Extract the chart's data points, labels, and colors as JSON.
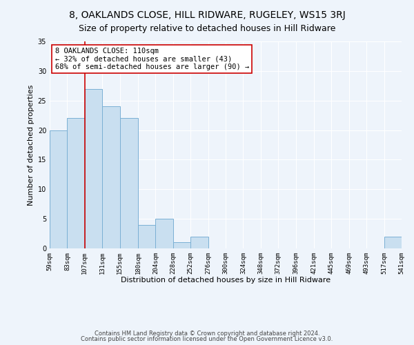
{
  "title": "8, OAKLANDS CLOSE, HILL RIDWARE, RUGELEY, WS15 3RJ",
  "subtitle": "Size of property relative to detached houses in Hill Ridware",
  "xlabel": "Distribution of detached houses by size in Hill Ridware",
  "ylabel": "Number of detached properties",
  "bar_edges": [
    59,
    83,
    107,
    131,
    155,
    180,
    204,
    228,
    252,
    276,
    300,
    324,
    348,
    372,
    396,
    421,
    445,
    469,
    493,
    517,
    541
  ],
  "bar_heights": [
    20,
    22,
    27,
    24,
    22,
    4,
    5,
    1,
    2,
    0,
    0,
    0,
    0,
    0,
    0,
    0,
    0,
    0,
    0,
    2
  ],
  "bar_color": "#c9dff0",
  "bar_edge_color": "#7ab0d4",
  "vline_x": 107,
  "vline_color": "#cc0000",
  "ylim": [
    0,
    35
  ],
  "annotation_title": "8 OAKLANDS CLOSE: 110sqm",
  "annotation_line1": "← 32% of detached houses are smaller (43)",
  "annotation_line2": "68% of semi-detached houses are larger (90) →",
  "annotation_box_color": "#ffffff",
  "annotation_box_edge_color": "#cc0000",
  "tick_labels": [
    "59sqm",
    "83sqm",
    "107sqm",
    "131sqm",
    "155sqm",
    "180sqm",
    "204sqm",
    "228sqm",
    "252sqm",
    "276sqm",
    "300sqm",
    "324sqm",
    "348sqm",
    "372sqm",
    "396sqm",
    "421sqm",
    "445sqm",
    "469sqm",
    "493sqm",
    "517sqm",
    "541sqm"
  ],
  "footnote1": "Contains HM Land Registry data © Crown copyright and database right 2024.",
  "footnote2": "Contains public sector information licensed under the Open Government Licence v3.0.",
  "bg_color": "#eef4fb",
  "grid_color": "#ffffff",
  "title_fontsize": 10,
  "subtitle_fontsize": 9,
  "axis_label_fontsize": 8,
  "tick_fontsize": 6.5,
  "annotation_fontsize": 7.5,
  "footnote_fontsize": 6
}
